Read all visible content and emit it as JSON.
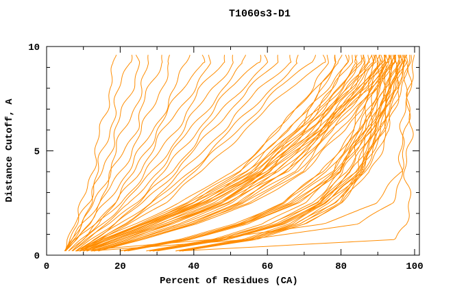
{
  "chart_data": {
    "type": "line",
    "title": "T1060s3-D1",
    "xlabel": "Percent of Residues (CA)",
    "ylabel": "Distance Cutoff, A",
    "xlim": [
      0,
      101.3
    ],
    "ylim": [
      0,
      10
    ],
    "xticks_major": [
      0,
      20,
      40,
      60,
      80,
      100
    ],
    "xticks_minor": [
      10,
      30,
      50,
      70,
      90
    ],
    "xtick_labels": [
      "0",
      "20",
      "40",
      "60",
      "80",
      "100"
    ],
    "yticks_major": [
      0,
      5,
      10
    ],
    "yticks_minor": [
      1,
      2,
      3,
      4,
      6,
      7,
      8,
      9
    ],
    "ytick_labels": [
      "0",
      "5",
      "10"
    ],
    "grid": false,
    "legend": "none",
    "curve_color": "#FF8C00",
    "frame_color": "#000000",
    "background_color": "#FFFFFF",
    "series_note": "Each series = one model accuracy curve; values are Percent of Residues (CA) at the anchor distance cutoffs below; curves end at cutoff 9.6 A",
    "anchor_cutoffs": [
      0.2,
      0.75,
      1.5,
      2.5,
      4.0,
      6.0,
      8.0,
      9.6
    ],
    "series": [
      [
        5,
        6,
        8,
        10,
        12,
        15,
        17,
        19
      ],
      [
        5,
        6,
        8,
        11,
        14,
        17,
        20,
        22
      ],
      [
        5,
        7,
        9,
        12,
        15,
        19,
        23,
        25
      ],
      [
        5,
        7,
        10,
        13,
        17,
        21,
        26,
        28
      ],
      [
        5,
        7,
        10,
        14,
        18,
        24,
        28,
        31
      ],
      [
        5,
        8,
        11,
        15,
        20,
        26,
        31,
        34
      ],
      [
        5,
        8,
        12,
        16,
        22,
        29,
        35,
        38
      ],
      [
        5,
        8,
        13,
        18,
        24,
        30,
        37,
        42
      ],
      [
        6,
        9,
        14,
        19,
        25,
        32,
        40,
        45
      ],
      [
        6,
        10,
        14,
        20,
        27,
        35,
        42,
        48
      ],
      [
        7,
        10,
        15,
        21,
        29,
        37,
        45,
        51
      ],
      [
        7,
        11,
        16,
        23,
        30,
        39,
        48,
        54
      ],
      [
        7,
        11,
        17,
        24,
        32,
        41,
        50,
        57
      ],
      [
        8,
        12,
        18,
        25,
        34,
        43,
        53,
        60
      ],
      [
        8,
        13,
        19,
        26,
        35,
        45,
        55,
        63
      ],
      [
        9,
        13,
        20,
        28,
        37,
        48,
        58,
        66
      ],
      [
        9,
        14,
        21,
        29,
        39,
        50,
        61,
        69
      ],
      [
        9,
        14,
        22,
        30,
        40,
        52,
        63,
        72
      ],
      [
        10,
        15,
        22,
        32,
        42,
        54,
        66,
        75
      ],
      [
        9,
        17,
        28,
        40,
        52,
        63,
        72,
        77
      ],
      [
        12,
        22,
        34,
        47,
        59,
        68,
        75,
        78
      ],
      [
        8,
        14,
        24,
        36,
        51,
        63,
        73,
        79
      ],
      [
        10,
        18,
        29,
        42,
        54,
        66,
        75,
        80
      ],
      [
        12,
        23,
        36,
        49,
        61,
        70,
        78,
        81
      ],
      [
        8,
        15,
        25,
        38,
        52,
        66,
        76,
        82
      ],
      [
        10,
        18,
        30,
        43,
        56,
        68,
        78,
        83
      ],
      [
        13,
        24,
        37,
        50,
        63,
        73,
        81,
        84
      ],
      [
        9,
        15,
        26,
        39,
        54,
        68,
        79,
        85
      ],
      [
        10,
        19,
        31,
        44,
        58,
        70,
        80,
        85
      ],
      [
        13,
        24,
        38,
        52,
        65,
        75,
        83,
        86
      ],
      [
        9,
        15,
        26,
        40,
        55,
        69,
        80,
        86
      ],
      [
        10,
        19,
        31,
        45,
        59,
        71,
        82,
        87
      ],
      [
        13,
        24,
        38,
        52,
        65,
        76,
        84,
        87
      ],
      [
        9,
        16,
        26,
        40,
        56,
        70,
        82,
        88
      ],
      [
        11,
        19,
        32,
        46,
        60,
        72,
        83,
        88
      ],
      [
        13,
        25,
        39,
        53,
        67,
        77,
        85,
        89
      ],
      [
        9,
        16,
        27,
        41,
        57,
        71,
        83,
        89
      ],
      [
        11,
        20,
        32,
        47,
        61,
        74,
        85,
        90
      ],
      [
        14,
        25,
        40,
        54,
        68,
        78,
        86,
        90
      ],
      [
        9,
        16,
        27,
        42,
        58,
        73,
        85,
        91
      ],
      [
        11,
        20,
        33,
        47,
        62,
        75,
        86,
        91
      ],
      [
        14,
        26,
        40,
        55,
        69,
        80,
        88,
        92
      ],
      [
        9,
        17,
        28,
        42,
        59,
        74,
        86,
        92
      ],
      [
        11,
        20,
        33,
        48,
        63,
        76,
        87,
        93
      ],
      [
        14,
        26,
        41,
        56,
        70,
        81,
        89,
        93
      ],
      [
        10,
        17,
        28,
        43,
        60,
        75,
        88,
        94
      ],
      [
        11,
        21,
        34,
        49,
        65,
        78,
        89,
        95
      ],
      [
        27,
        45,
        59,
        70,
        78,
        85,
        88,
        90
      ],
      [
        20,
        36,
        51,
        64,
        75,
        83,
        88,
        91
      ],
      [
        35,
        53,
        66,
        75,
        82,
        86,
        90,
        91
      ],
      [
        28,
        46,
        61,
        72,
        80,
        86,
        90,
        92
      ],
      [
        20,
        37,
        52,
        64,
        75,
        84,
        89,
        92
      ],
      [
        35,
        54,
        67,
        76,
        84,
        88,
        92,
        93
      ],
      [
        28,
        47,
        61,
        73,
        81,
        87,
        91,
        93
      ],
      [
        20,
        37,
        52,
        65,
        76,
        85,
        90,
        93
      ],
      [
        36,
        55,
        68,
        77,
        85,
        89,
        93,
        94
      ],
      [
        28,
        47,
        62,
        73,
        82,
        88,
        92,
        94
      ],
      [
        21,
        38,
        53,
        66,
        77,
        86,
        91,
        94
      ],
      [
        36,
        55,
        68,
        78,
        86,
        90,
        94,
        95
      ],
      [
        29,
        48,
        63,
        74,
        83,
        89,
        93,
        95
      ],
      [
        21,
        38,
        53,
        67,
        78,
        87,
        92,
        95
      ],
      [
        36,
        55,
        69,
        78,
        86,
        90,
        94,
        95
      ],
      [
        29,
        48,
        63,
        75,
        84,
        90,
        94,
        96
      ],
      [
        21,
        38,
        54,
        67,
        79,
        87,
        93,
        96
      ],
      [
        37,
        56,
        69,
        79,
        86,
        91,
        95,
        96
      ],
      [
        29,
        48,
        64,
        75,
        84,
        90,
        94,
        96
      ],
      [
        21,
        39,
        54,
        68,
        79,
        88,
        94,
        97
      ],
      [
        37,
        56,
        70,
        80,
        87,
        92,
        95,
        97
      ],
      [
        29,
        49,
        64,
        76,
        85,
        91,
        95,
        97
      ],
      [
        22,
        39,
        55,
        68,
        80,
        88,
        94,
        97
      ],
      [
        37,
        57,
        70,
        80,
        88,
        93,
        96,
        98
      ],
      [
        30,
        49,
        65,
        76,
        86,
        92,
        96,
        98
      ],
      [
        36,
        95,
        98,
        98,
        98,
        98.5,
        99,
        99
      ],
      [
        8,
        45,
        75,
        90,
        96,
        97,
        98,
        99
      ],
      [
        12,
        55,
        85,
        94,
        96,
        97.5,
        98,
        98.5
      ]
    ]
  }
}
